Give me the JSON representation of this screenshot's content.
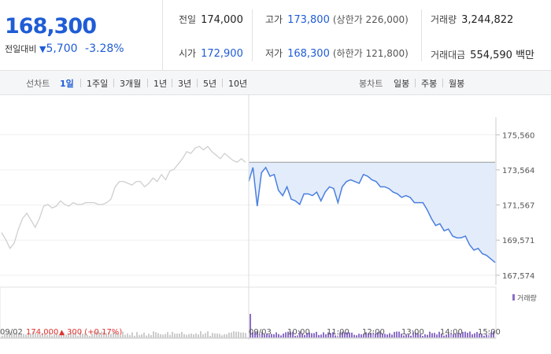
{
  "header": {
    "price": "168,300",
    "change_label": "전일대비",
    "change_arrow": "▼",
    "change_value": "5,700",
    "change_pct": "-3.28%",
    "stats": {
      "prev_label": "전일",
      "prev_value": "174,000",
      "high_label": "고가",
      "high_value": "173,800",
      "upper_limit": "(상한가 226,000)",
      "volume_label": "거래량",
      "volume_value": "3,244,822",
      "open_label": "시가",
      "open_value": "172,900",
      "low_label": "저가",
      "low_value": "168,300",
      "lower_limit": "(하한가 121,800)",
      "amount_label": "거래대금",
      "amount_value": "554,590 백만"
    }
  },
  "tabs": {
    "line_label": "선차트",
    "line_tabs": [
      "1일",
      "1주일",
      "3개월",
      "1년",
      "3년",
      "5년",
      "10년"
    ],
    "candle_label": "봉차트",
    "candle_tabs": [
      "일봉",
      "주봉",
      "월봉"
    ]
  },
  "chart_data": {
    "type": "line",
    "y_ticks": [
      "175,560",
      "173,564",
      "171,567",
      "169,571",
      "167,574"
    ],
    "y_tick_values": [
      175560,
      173564,
      171567,
      169571,
      167574
    ],
    "ylim": [
      167300,
      176200
    ],
    "x_ticks": [
      "09/03",
      "10:00",
      "11:00",
      "12:00",
      "13:00",
      "14:00",
      "15:00"
    ],
    "prev_day_label": "09/02",
    "prev_close_label": "174,000",
    "prev_change_arrow": "▲",
    "prev_change_text": "300 (+0.17%)",
    "prev_close_value": 174000,
    "volume_legend": "거래량",
    "colors": {
      "today_line": "#4a7fe0",
      "today_fill": "#e3ecfa",
      "prev_line": "#cfcfcf",
      "volume": "#8b6fc7",
      "prev_volume": "#cccccc"
    },
    "series": [
      {
        "name": "09/02",
        "values": [
          170000,
          169600,
          169100,
          169400,
          170200,
          170800,
          171100,
          170700,
          170300,
          170800,
          171500,
          171600,
          171400,
          171500,
          171800,
          171600,
          171500,
          171700,
          171600,
          171600,
          171700,
          171700,
          171700,
          171600,
          171600,
          171700,
          171900,
          172600,
          172900,
          172900,
          172800,
          172700,
          172900,
          172900,
          172600,
          172800,
          173100,
          172900,
          173300,
          173000,
          173500,
          173600,
          173900,
          174200,
          174600,
          174500,
          174800,
          174900,
          174700,
          174900,
          174600,
          174400,
          174200,
          174500,
          174300,
          174100,
          174000,
          174200,
          174000
        ]
      },
      {
        "name": "09/03",
        "values": [
          172900,
          173700,
          171500,
          173400,
          173700,
          173200,
          173300,
          172400,
          172100,
          172600,
          171900,
          171800,
          171600,
          172200,
          172200,
          172100,
          172300,
          171800,
          172300,
          172600,
          172500,
          171700,
          172600,
          172900,
          173000,
          172900,
          172800,
          173300,
          173200,
          173000,
          172900,
          172600,
          172600,
          172500,
          172300,
          172200,
          172000,
          172100,
          172000,
          171700,
          171700,
          171700,
          171300,
          170800,
          170400,
          170500,
          170100,
          170200,
          169800,
          169700,
          169700,
          169800,
          169300,
          169000,
          169100,
          168800,
          168700,
          168500,
          168300
        ]
      }
    ]
  }
}
